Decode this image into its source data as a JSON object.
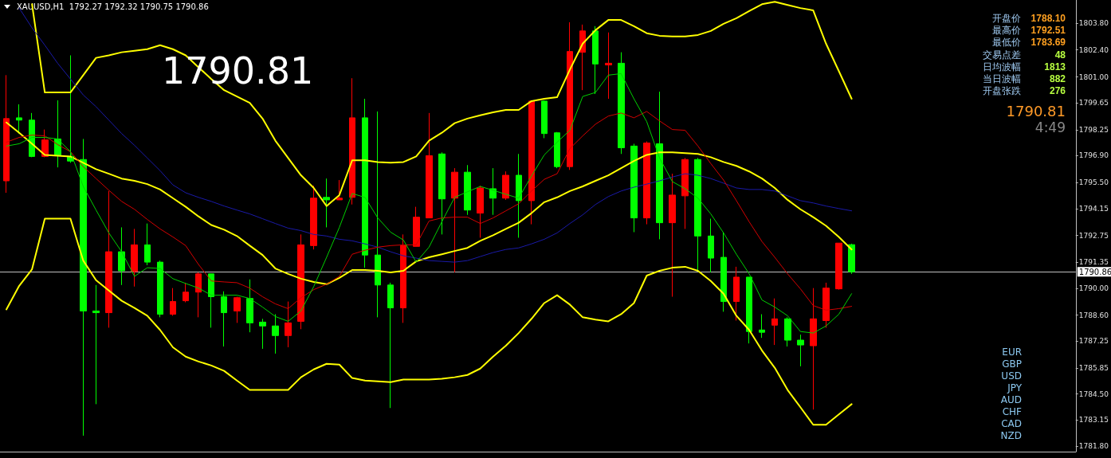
{
  "chart_data": {
    "type": "candlestick",
    "title": "XAUUSD,H1  1792.27 1792.32 1790.75 1790.86",
    "categories": [
      null,
      null,
      null,
      null,
      null,
      null,
      null,
      null,
      null,
      null,
      null,
      null,
      null,
      null,
      null,
      null,
      null,
      null,
      null,
      null,
      null,
      null,
      null,
      null,
      null,
      null,
      null,
      null,
      null,
      null,
      null,
      null,
      null,
      null,
      null,
      null,
      null,
      null,
      null,
      null,
      null,
      null,
      null,
      null,
      null,
      null,
      null,
      null,
      null,
      null,
      null,
      null,
      null,
      null,
      null,
      null,
      null,
      null,
      null,
      null,
      null,
      null,
      null,
      null,
      null,
      null,
      null
    ],
    "ohlc": [
      [
        1795.59,
        1801.09,
        1794.97,
        1798.83
      ],
      [
        1798.87,
        1799.57,
        1798.05,
        1798.75
      ],
      [
        1798.75,
        1799.12,
        1796.82,
        1796.86
      ],
      [
        1796.86,
        1798.26,
        1796.82,
        1797.72
      ],
      [
        1797.77,
        1799.78,
        1796.29,
        1796.94
      ],
      [
        1796.86,
        1802.12,
        1796.53,
        1796.62
      ],
      [
        1796.7,
        1797.77,
        1782.33,
        1788.82
      ],
      [
        1788.82,
        1790.17,
        1783.97,
        1788.73
      ],
      [
        1788.73,
        1795.06,
        1787.95,
        1791.9
      ],
      [
        1791.9,
        1793.17,
        1790.17,
        1790.91
      ],
      [
        1790.87,
        1793.09,
        1790.09,
        1792.26
      ],
      [
        1792.26,
        1793.37,
        1791.2,
        1791.36
      ],
      [
        1791.36,
        1791.44,
        1788.49,
        1788.65
      ],
      [
        1788.65,
        1790.01,
        1788.57,
        1789.31
      ],
      [
        1789.35,
        1790.29,
        1789.27,
        1789.8
      ],
      [
        1789.8,
        1790.83,
        1788.49,
        1790.75
      ],
      [
        1790.75,
        1790.75,
        1787.95,
        1789.56
      ],
      [
        1789.56,
        1789.84,
        1786.97,
        1788.73
      ],
      [
        1788.82,
        1789.56,
        1788.2,
        1789.51
      ],
      [
        1789.47,
        1790.46,
        1787.71,
        1788.2
      ],
      [
        1788.24,
        1788.41,
        1786.85,
        1788.04
      ],
      [
        1788.04,
        1788.65,
        1786.6,
        1787.54
      ],
      [
        1787.54,
        1789.31,
        1786.93,
        1788.2
      ],
      [
        1788.28,
        1792.8,
        1787.87,
        1792.26
      ],
      [
        1792.22,
        1795.34,
        1792.02,
        1794.69
      ],
      [
        1794.73,
        1795.71,
        1793.17,
        1794.6
      ],
      [
        1794.6,
        1795.63,
        1794.6,
        1794.69
      ],
      [
        1794.73,
        1800.93,
        1794.36,
        1798.87
      ],
      [
        1798.87,
        1799.86,
        1791.07,
        1791.73
      ],
      [
        1791.73,
        1799.2,
        1788.49,
        1790.17
      ],
      [
        1790.17,
        1790.29,
        1783.77,
        1788.98
      ],
      [
        1788.98,
        1792.8,
        1788.2,
        1792.22
      ],
      [
        1792.18,
        1794.24,
        1792.18,
        1793.7
      ],
      [
        1793.66,
        1799.12,
        1793.66,
        1796.9
      ],
      [
        1796.99,
        1797.07,
        1792.8,
        1794.65
      ],
      [
        1794.69,
        1796.25,
        1790.83,
        1796.04
      ],
      [
        1796.04,
        1796.41,
        1793.82,
        1794.07
      ],
      [
        1793.91,
        1795.34,
        1792.63,
        1795.22
      ],
      [
        1795.18,
        1796.25,
        1793.82,
        1794.69
      ],
      [
        1794.69,
        1796.08,
        1794.6,
        1795.88
      ],
      [
        1795.88,
        1796.99,
        1792.63,
        1794.56
      ],
      [
        1794.56,
        1799.78,
        1793.33,
        1799.74
      ],
      [
        1799.74,
        1799.78,
        1797.81,
        1798.05
      ],
      [
        1798.09,
        1798.13,
        1796.25,
        1796.33
      ],
      [
        1796.33,
        1803.84,
        1796.16,
        1802.32
      ],
      [
        1802.28,
        1803.72,
        1800.31,
        1803.39
      ],
      [
        1803.39,
        1803.64,
        1800.11,
        1801.67
      ],
      [
        1801.62,
        1803.31,
        1799.86,
        1801.71
      ],
      [
        1801.71,
        1802.28,
        1796.99,
        1797.31
      ],
      [
        1797.4,
        1797.52,
        1792.92,
        1793.66
      ],
      [
        1793.66,
        1797.64,
        1793.33,
        1797.56
      ],
      [
        1797.52,
        1800.23,
        1792.55,
        1793.41
      ],
      [
        1793.41,
        1795.96,
        1789.56,
        1794.85
      ],
      [
        1794.81,
        1796.78,
        1793.09,
        1796.7
      ],
      [
        1796.7,
        1796.78,
        1790.91,
        1792.72
      ],
      [
        1792.72,
        1793.62,
        1790.83,
        1791.57
      ],
      [
        1791.61,
        1792.92,
        1788.78,
        1789.31
      ],
      [
        1789.31,
        1791.12,
        1788.32,
        1790.58
      ],
      [
        1790.58,
        1790.58,
        1787.13,
        1787.75
      ],
      [
        1787.83,
        1788.65,
        1787.42,
        1787.71
      ],
      [
        1788.08,
        1789.47,
        1787.05,
        1788.41
      ],
      [
        1788.41,
        1788.49,
        1786.97,
        1787.3
      ],
      [
        1787.3,
        1787.59,
        1785.94,
        1787.05
      ],
      [
        1787.01,
        1790.01,
        1783.69,
        1788.41
      ],
      [
        1788.32,
        1790.29,
        1787.95,
        1790.01
      ],
      [
        1789.97,
        1792.35,
        1789.93,
        1792.35
      ],
      [
        1792.27,
        1792.32,
        1790.75,
        1790.86
      ]
    ],
    "colors": [
      "#ff0000",
      "#00ff00",
      "#00ff00",
      "#ff0000",
      "#00ff00",
      "#00ff00",
      "#00ff00",
      "#00ff00",
      "#ff0000",
      "#00ff00",
      "#ff0000",
      "#00ff00",
      "#00ff00",
      "#ff0000",
      "#ff0000",
      "#ff0000",
      "#00ff00",
      "#00ff00",
      "#ff0000",
      "#00ff00",
      "#00ff00",
      "#00ff00",
      "#ff0000",
      "#ff0000",
      "#ff0000",
      "#00ff00",
      "#ff0000",
      "#ff0000",
      "#00ff00",
      "#00ff00",
      "#00ff00",
      "#ff0000",
      "#ff0000",
      "#ff0000",
      "#00ff00",
      "#ff0000",
      "#00ff00",
      "#ff0000",
      "#00ff00",
      "#ff0000",
      "#00ff00",
      "#ff0000",
      "#00ff00",
      "#00ff00",
      "#ff0000",
      "#ff0000",
      "#00ff00",
      "#ff0000",
      "#00ff00",
      "#00ff00",
      "#ff0000",
      "#00ff00",
      "#ff0000",
      "#ff0000",
      "#00ff00",
      "#00ff00",
      "#00ff00",
      "#ff0000",
      "#00ff00",
      "#00ff00",
      "#ff0000",
      "#00ff00",
      "#00ff00",
      "#ff0000",
      "#ff0000",
      "#ff0000",
      "#00ff00"
    ],
    "series": [
      {
        "type": "line",
        "color": "#ffff00",
        "values": [
          null,
          null,
          1804.78,
          1800.19,
          1800.19,
          1800.19,
          1801.09,
          1801.99,
          1802.12,
          1802.28,
          1802.36,
          1802.44,
          1802.65,
          1802.44,
          1802.12,
          1801.5,
          1800.89,
          1800.31,
          1799.98,
          1799.65,
          1798.83,
          1797.68,
          1796.78,
          1795.88,
          1795.22,
          1794.28,
          1794.85,
          1796.66,
          1796.66,
          1796.57,
          1796.53,
          1796.57,
          1796.86,
          1797.68,
          1798.09,
          1798.59,
          1798.83,
          1799.0,
          1799.16,
          1799.28,
          1799.28,
          1799.74,
          1799.86,
          1799.94,
          1801.38,
          1802.73,
          1803.43,
          1803.96,
          1803.96,
          1803.64,
          1803.27,
          1803.14,
          1803.1,
          1803.1,
          1803.18,
          1803.39,
          1803.76,
          1804.05,
          1804.42,
          1804.78,
          1804.91,
          1804.74,
          1804.58,
          1804.46,
          1802.73,
          1801.3,
          1799.86
        ]
      },
      {
        "type": "line",
        "color": "#ffff00",
        "values": [
          1798.63,
          1798.09,
          1797.52,
          1796.94,
          1796.9,
          1796.86,
          1796.53,
          1796.2,
          1795.96,
          1795.71,
          1795.59,
          1795.42,
          1795.14,
          1794.69,
          1794.24,
          1793.74,
          1793.29,
          1793.05,
          1792.72,
          1792.22,
          1791.73,
          1791.03,
          1790.75,
          1790.5,
          1790.33,
          1790.21,
          1790.54,
          1790.95,
          1790.95,
          1790.91,
          1790.83,
          1790.91,
          1791.4,
          1791.61,
          1791.77,
          1791.94,
          1792.1,
          1792.47,
          1792.76,
          1793.09,
          1793.41,
          1793.91,
          1794.48,
          1794.73,
          1795.06,
          1795.3,
          1795.59,
          1795.88,
          1796.25,
          1796.62,
          1796.94,
          1797.07,
          1797.07,
          1797.03,
          1796.99,
          1796.82,
          1796.57,
          1796.37,
          1796.08,
          1795.71,
          1795.22,
          1794.6,
          1794.11,
          1793.7,
          1793.25,
          1792.67,
          1792.02
        ]
      },
      {
        "type": "line",
        "color": "#ffff00",
        "values": [
          1788.9,
          1790.13,
          1790.99,
          1793.62,
          1793.62,
          1793.62,
          1791.44,
          1790.42,
          1789.88,
          1789.35,
          1788.98,
          1788.57,
          1787.83,
          1786.93,
          1786.44,
          1786.19,
          1785.98,
          1785.7,
          1785.2,
          1784.71,
          1784.71,
          1784.71,
          1784.71,
          1785.37,
          1785.78,
          1786.07,
          1786.03,
          1785.33,
          1785.2,
          1785.16,
          1785.12,
          1785.25,
          1785.25,
          1785.25,
          1785.29,
          1785.37,
          1785.49,
          1785.82,
          1786.44,
          1787.01,
          1787.67,
          1788.41,
          1789.23,
          1789.64,
          1789.15,
          1788.49,
          1788.37,
          1788.28,
          1788.65,
          1789.23,
          1790.66,
          1790.91,
          1791.07,
          1791.12,
          1790.91,
          1790.38,
          1789.72,
          1788.57,
          1787.83,
          1786.76,
          1785.86,
          1784.71,
          1783.81,
          1782.9,
          1782.9,
          1783.44,
          1783.97
        ]
      },
      {
        "type": "line",
        "color": "#1a1aa8",
        "values": [
          null,
          1804.58,
          1803.55,
          1802.65,
          1801.71,
          1800.89,
          1800.06,
          1799.45,
          1798.75,
          1798.05,
          1797.44,
          1796.78,
          1796.12,
          1795.38,
          1794.97,
          1794.73,
          1794.52,
          1794.28,
          1794.07,
          1793.87,
          1793.62,
          1793.37,
          1793.13,
          1793.0,
          1792.8,
          1792.72,
          1792.55,
          1792.47,
          1792.31,
          1792.14,
          1791.9,
          1791.69,
          1791.57,
          1791.44,
          1791.4,
          1791.36,
          1791.44,
          1791.65,
          1791.86,
          1792.02,
          1792.1,
          1792.31,
          1792.55,
          1792.88,
          1793.37,
          1793.82,
          1794.36,
          1794.77,
          1795.06,
          1795.26,
          1795.42,
          1795.59,
          1795.79,
          1795.96,
          1795.88,
          1795.71,
          1795.47,
          1795.22,
          1795.14,
          1795.14,
          1795.06,
          1794.81,
          1794.56,
          1794.44,
          1794.28,
          1794.15,
          1794.03
        ]
      },
      {
        "type": "line",
        "color": "#d40000",
        "values": [
          1797.6,
          1797.85,
          1797.97,
          1797.93,
          1797.48,
          1797.11,
          1796.33,
          1795.71,
          1795.1,
          1794.52,
          1794.11,
          1793.58,
          1793.09,
          1792.67,
          1792.22,
          1791.24,
          1790.38,
          1790.33,
          1790.29,
          1790.01,
          1789.56,
          1789.19,
          1788.94,
          1789.51,
          1789.93,
          1790.21,
          1790.62,
          1791.77,
          1791.98,
          1792.14,
          1792.22,
          1792.26,
          1792.26,
          1793.5,
          1793.66,
          1793.7,
          1793.7,
          1793.37,
          1793.66,
          1794.03,
          1794.4,
          1795.06,
          1795.67,
          1795.96,
          1797.27,
          1797.93,
          1798.54,
          1798.96,
          1799.12,
          1798.87,
          1799.2,
          1798.71,
          1798.26,
          1798.22,
          1797.4,
          1796.49,
          1795.63,
          1794.56,
          1793.46,
          1792.43,
          1791.61,
          1790.75,
          1789.97,
          1789.1,
          1788.86,
          1788.94,
          1789.06
        ]
      },
      {
        "type": "line",
        "color": "#00d000",
        "values": [
          1797.4,
          1797.52,
          1797.85,
          1797.85,
          1797.77,
          1797.11,
          1795.3,
          1794.07,
          1792.88,
          1791.9,
          1790.62,
          1791.07,
          1791.03,
          1790.5,
          1790.25,
          1790.01,
          1789.64,
          1789.64,
          1789.64,
          1789.47,
          1789.02,
          1788.53,
          1788.28,
          1788.82,
          1790.09,
          1791.61,
          1793.17,
          1794.93,
          1794.73,
          1793.66,
          1792.92,
          1792.51,
          1791.36,
          1792.14,
          1793.46,
          1794.73,
          1795.02,
          1795.3,
          1795.1,
          1794.89,
          1794.69,
          1795.84,
          1796.94,
          1797.6,
          1798.22,
          1799.98,
          1800.19,
          1801.09,
          1801.17,
          1799.86,
          1798.67,
          1796.78,
          1795.55,
          1795.18,
          1794.69,
          1793.87,
          1792.88,
          1791.77,
          1790.75,
          1789.39,
          1789.02,
          1788.57,
          1787.75,
          1787.67,
          1788.04,
          1788.65,
          1789.72
        ]
      }
    ],
    "ylim": [
      1781.5,
      1805.0
    ],
    "yticks": [
      {
        "value": 1781.8,
        "label": "1781.80"
      },
      {
        "value": 1783.15,
        "label": "1783.15"
      },
      {
        "value": 1784.5,
        "label": "1784.50"
      },
      {
        "value": 1785.85,
        "label": "1785.85"
      },
      {
        "value": 1787.25,
        "label": "1787.25"
      },
      {
        "value": 1788.6,
        "label": "1788.60"
      },
      {
        "value": 1790,
        "label": "1790.00"
      },
      {
        "value": 1791.35,
        "label": "1791.35"
      },
      {
        "value": 1792.75,
        "label": "1792.75"
      },
      {
        "value": 1794.15,
        "label": "1794.15"
      },
      {
        "value": 1795.5,
        "label": "1795.50"
      },
      {
        "value": 1796.9,
        "label": "1796.90"
      },
      {
        "value": 1798.25,
        "label": "1798.25"
      },
      {
        "value": 1799.65,
        "label": "1799.65"
      },
      {
        "value": 1801,
        "label": "1801.00"
      },
      {
        "value": 1802.4,
        "label": "1802.40"
      },
      {
        "value": 1803.8,
        "label": "1803.80"
      }
    ],
    "ref_lines": [
      {
        "axis": "y",
        "value": 1790.86,
        "label": "1790.86",
        "color": "#c0c0c0"
      }
    ],
    "marker": "none",
    "annotations": [
      "1790.81",
      "开盘价 1788.10",
      "最高价 1792.51",
      "最低价 1783.69",
      "交易点差 48",
      "日均波幅 1813",
      "当日波幅 882",
      "开盘张跌 276",
      "1790.81",
      "4:49",
      "EUR",
      "GBP",
      "USD",
      "JPY",
      "AUD",
      "CHF",
      "CAD",
      "NZD"
    ]
  }
}
